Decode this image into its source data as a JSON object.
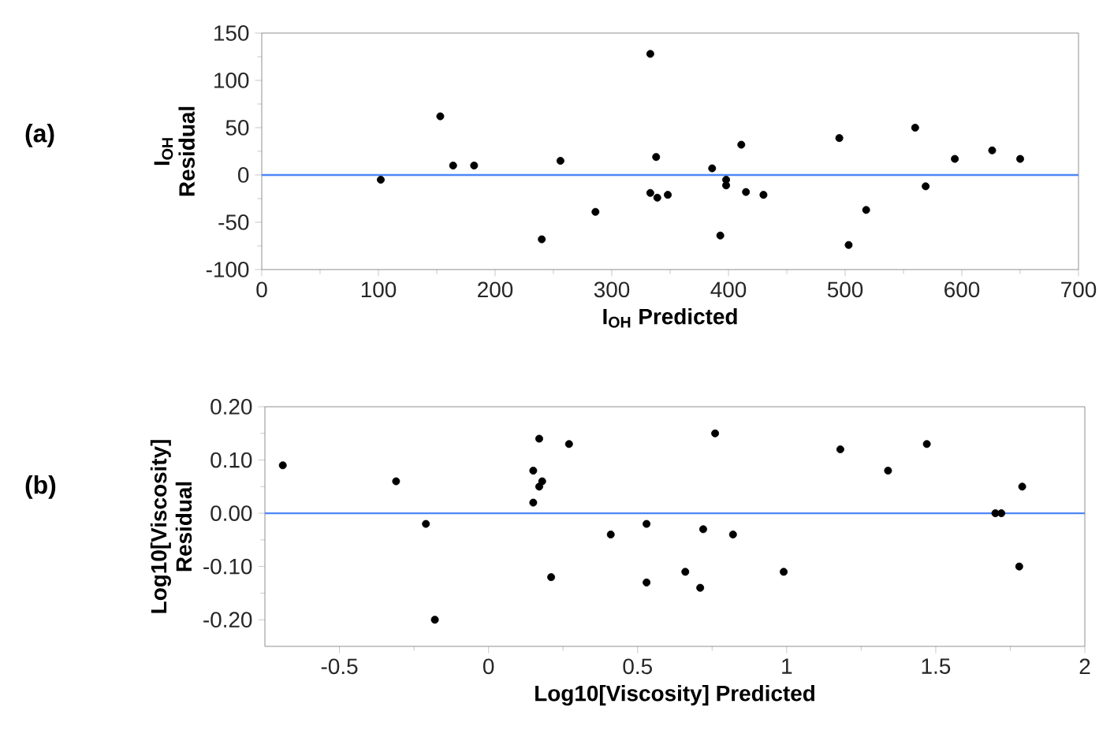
{
  "chart_data": [
    {
      "type": "scatter",
      "xlabel": "I$_{OH}$ Predicted",
      "ylabel": "I$_{OH}$ Residual",
      "annotations": [
        "(a)"
      ],
      "marker": "circle",
      "xlim": [
        0,
        700
      ],
      "ylim": [
        -100,
        150
      ],
      "xticks": [
        0,
        100,
        200,
        300,
        400,
        500,
        600,
        700
      ],
      "yticks": [
        -100,
        -50,
        0,
        50,
        100,
        150
      ],
      "ref_lines": [
        {
          "axis": "y",
          "value": 0,
          "color": "#4f86f7"
        }
      ],
      "series": [
        {
          "color": "#000000",
          "x": [
            102,
            153,
            164,
            182,
            240,
            256,
            286,
            333,
            333,
            338,
            339,
            348,
            386,
            393,
            398,
            398,
            411,
            415,
            430,
            495,
            503,
            518,
            560,
            569,
            594,
            626,
            650
          ],
          "values": [
            -5,
            62,
            10,
            10,
            -68,
            15,
            -39,
            128,
            -19,
            19,
            -24,
            -21,
            7,
            -64,
            -5,
            -11,
            32,
            -18,
            -21,
            39,
            -74,
            -37,
            50,
            -12,
            17,
            26,
            17
          ]
        }
      ]
    },
    {
      "type": "scatter",
      "xlabel": "Log10[Viscosity] Predicted",
      "ylabel": "Log10[Viscosity] Residual",
      "annotations": [
        "(b)"
      ],
      "marker": "circle",
      "xlim": [
        -0.75,
        2
      ],
      "ylim": [
        -0.25,
        0.2
      ],
      "xticks": [
        -0.5,
        0,
        0.5,
        1,
        1.5,
        2
      ],
      "yticks": [
        {
          "value": -0.2,
          "label": "-0.20"
        },
        {
          "value": -0.1,
          "label": "-0.10"
        },
        {
          "value": 0,
          "label": "0.00"
        },
        {
          "value": 0.1,
          "label": "0.10"
        },
        {
          "value": 0.2,
          "label": "0.20"
        }
      ],
      "ref_lines": [
        {
          "axis": "y",
          "value": 0,
          "color": "#4f86f7"
        }
      ],
      "series": [
        {
          "color": "#000000",
          "x": [
            -0.69,
            -0.31,
            -0.21,
            -0.18,
            0.15,
            0.15,
            0.17,
            0.17,
            0.18,
            0.21,
            0.27,
            0.41,
            0.53,
            0.53,
            0.66,
            0.71,
            0.72,
            0.76,
            0.82,
            0.99,
            1.18,
            1.34,
            1.47,
            1.7,
            1.72,
            1.78,
            1.79
          ],
          "values": [
            0.09,
            0.06,
            -0.02,
            -0.2,
            0.08,
            0.02,
            0.14,
            0.05,
            0.06,
            -0.12,
            0.13,
            -0.04,
            -0.02,
            -0.13,
            -0.11,
            -0.14,
            -0.03,
            0.15,
            -0.04,
            -0.11,
            0.12,
            0.08,
            0.13,
            0.0,
            0.0,
            -0.1,
            0.05
          ]
        }
      ]
    }
  ]
}
